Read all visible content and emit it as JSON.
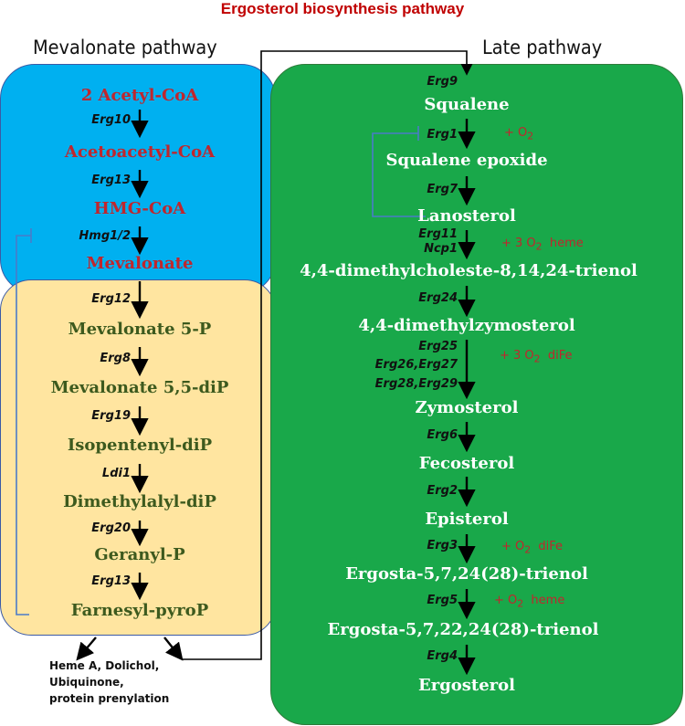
{
  "title": "Ergosterol biosynthesis pathway",
  "mevalonate_header": "Mevalonate pathway",
  "late_header": "Late pathway",
  "colors": {
    "title": "#c00000",
    "blue_panel": "#00b0f0",
    "yellow_panel": "#ffe5a0",
    "green_panel": "#19a84a",
    "red_text": "#c0262d",
    "olive_text": "#3d5a1e",
    "inhibition_line": "#4a7bc8"
  },
  "mevalonate": {
    "metabolites": [
      "2 Acetyl-CoA",
      "Acetoacetyl-CoA",
      "HMG-CoA",
      "Mevalonate",
      "Mevalonate 5-P",
      "Mevalonate 5,5-diP",
      "Isopentenyl-diP",
      "Dimethylalyl-diP",
      "Geranyl-P",
      "Farnesyl-pyroP"
    ],
    "enzymes": [
      "Erg10",
      "Erg13",
      "Hmg1/2",
      "Erg12",
      "Erg8",
      "Erg19",
      "Ldi1",
      "Erg20",
      "Erg13"
    ]
  },
  "products": [
    "Heme A, Dolichol,",
    "Ubiquinone,",
    "protein prenylation"
  ],
  "late": {
    "first_enzyme": "Erg9",
    "metabolites": [
      "Squalene",
      "Squalene epoxide",
      "Lanosterol",
      "4,4-dimethylcholeste-8,14,24-trienol",
      "4,4-dimethylzymosterol",
      "Zymosterol",
      "Fecosterol",
      "Episterol",
      "Ergosta-5,7,24(28)-trienol",
      "Ergosta-5,7,22,24(28)-trienol",
      "Ergosterol"
    ],
    "enzymes": [
      "Erg1",
      "Erg7",
      "Erg11",
      "Ncp1",
      "Erg24",
      "Erg25",
      "Erg26,Erg27",
      "Erg28,Erg29",
      "Erg6",
      "Erg2",
      "Erg3",
      "Erg5",
      "Erg4"
    ],
    "cofactors": [
      "+ O",
      "+ 3 O",
      "heme",
      "+ 3 O",
      "diFe",
      "+ O",
      "diFe",
      "+ O",
      "heme"
    ],
    "subscript": "2"
  }
}
